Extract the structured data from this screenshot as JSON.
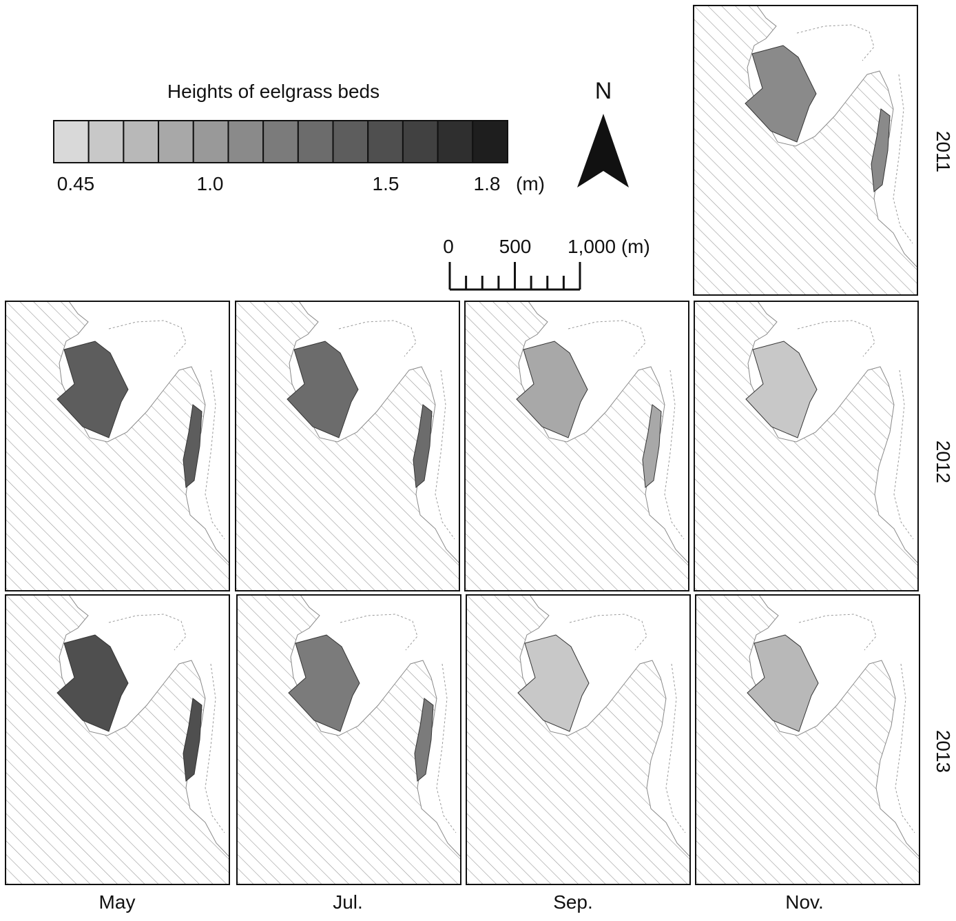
{
  "legend": {
    "title": "Heights of eelgrass beds",
    "colors": [
      "#d9d9d9",
      "#c8c8c8",
      "#b8b8b8",
      "#a8a8a8",
      "#999999",
      "#8a8a8a",
      "#7b7b7b",
      "#6c6c6c",
      "#5d5d5d",
      "#4f4f4f",
      "#414141",
      "#2f2f2f",
      "#1e1e1e"
    ],
    "labels": [
      "0.45",
      "1.0",
      "1.5",
      "1.8"
    ],
    "unit": "(m)"
  },
  "north": "N",
  "scale_bar": {
    "labels": [
      "0",
      "500",
      "1,000 (m)"
    ]
  },
  "years": [
    "2011",
    "2012",
    "2013"
  ],
  "months": [
    "May",
    "Jul.",
    "Sep.",
    "Nov."
  ]
}
